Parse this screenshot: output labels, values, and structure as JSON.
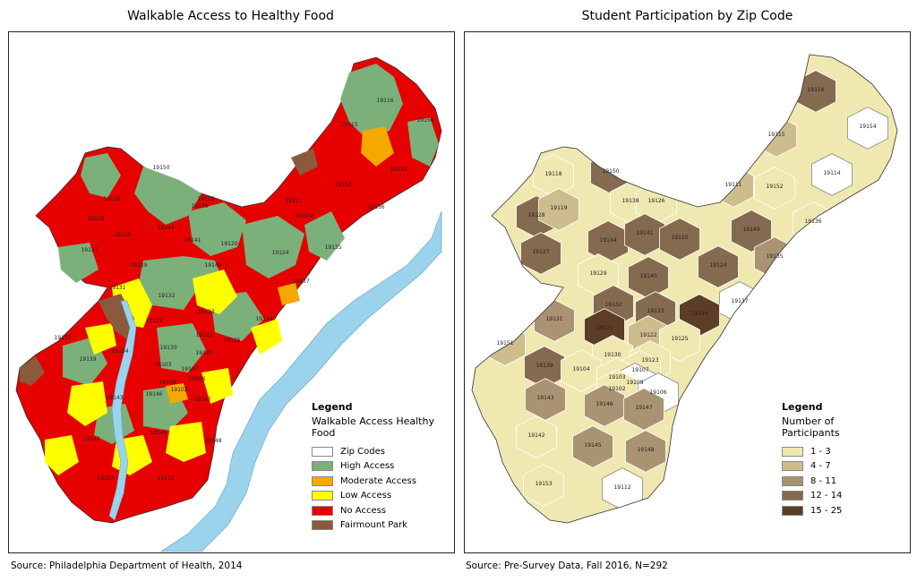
{
  "left_map": {
    "title": "Walkable Access to Healthy Food",
    "legend_title": "Legend",
    "legend_subtitle": "Walkable Access Healthy Food",
    "legend_items": [
      {
        "label": "Zip Codes",
        "color": "#ffffff"
      },
      {
        "label": "High Access",
        "color": "#7bb07b"
      },
      {
        "label": "Moderate Access",
        "color": "#f5a800"
      },
      {
        "label": "Low Access",
        "color": "#ffff00"
      },
      {
        "label": "No Access",
        "color": "#e60000"
      },
      {
        "label": "Fairmount Park",
        "color": "#8b5a3c"
      }
    ],
    "source": "Source: Philadelphia Department of Health, 2014",
    "zip_labels": [
      "19116",
      "19115",
      "19154",
      "19114",
      "19150",
      "19118",
      "19128",
      "19119",
      "19127",
      "19138",
      "19126",
      "19111",
      "19152",
      "19136",
      "19149",
      "19144",
      "19141",
      "19120",
      "19135",
      "19124",
      "19129",
      "19140",
      "19137",
      "19131",
      "19132",
      "19133",
      "19134",
      "19121",
      "19122",
      "19125",
      "19151",
      "19139",
      "19104",
      "19130",
      "19103",
      "19107",
      "19106",
      "19123",
      "19109",
      "19102",
      "19146",
      "19143",
      "19147",
      "19142",
      "19145",
      "19148",
      "19153",
      "19112"
    ],
    "water_color": "#9bd3ec"
  },
  "right_map": {
    "title": "Student Participation by Zip Code",
    "legend_title": "Legend",
    "legend_subtitle": "Number of Participants",
    "legend_items": [
      {
        "label": "1 - 3",
        "color": "#efe8b0"
      },
      {
        "label": "4 - 7",
        "color": "#cdbd8c"
      },
      {
        "label": "8 - 11",
        "color": "#a99372"
      },
      {
        "label": "12 - 14",
        "color": "#846a4f"
      },
      {
        "label": "15 - 25",
        "color": "#5c3d25"
      }
    ],
    "source": "Source: Pre-Survey Data, Fall 2016, N=292",
    "zip_labels": [
      "19116",
      "19115",
      "19154",
      "19114",
      "19118",
      "19150",
      "19138",
      "19126",
      "19152",
      "19111",
      "19128",
      "19119",
      "19144",
      "19141",
      "19120",
      "19149",
      "19136",
      "19127",
      "19124",
      "19135",
      "19129",
      "19140",
      "19137",
      "19131",
      "19132",
      "19133",
      "19134",
      "19121",
      "19122",
      "19125",
      "19151",
      "19130",
      "19123",
      "19139",
      "19104",
      "19107",
      "19103",
      "19109",
      "19106",
      "19102",
      "19143",
      "19146",
      "19147",
      "19142",
      "19145",
      "19148",
      "19153",
      "19112"
    ]
  }
}
